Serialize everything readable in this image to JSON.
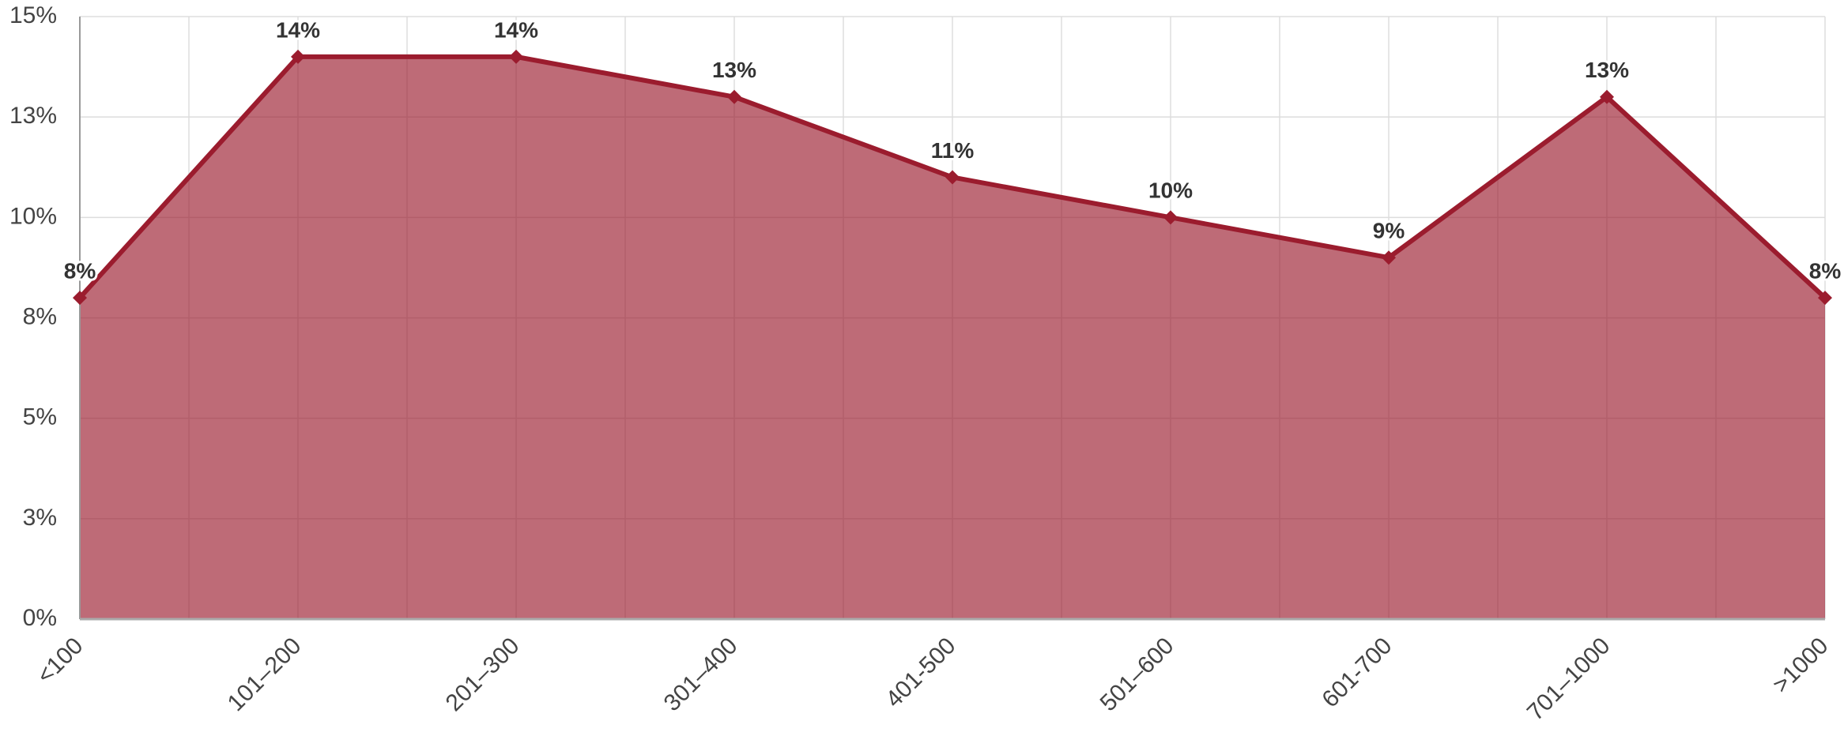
{
  "chart_data": {
    "type": "area",
    "categories": [
      "<100",
      "101–200",
      "201–300",
      "301–400",
      "401-500",
      "501–600",
      "601-700",
      "701–1000",
      ">1000"
    ],
    "values": [
      8,
      14,
      14,
      13,
      11,
      10,
      9,
      13,
      8
    ],
    "value_labels": [
      "8%",
      "14%",
      "14%",
      "13%",
      "11%",
      "10%",
      "9%",
      "13%",
      "8%"
    ],
    "color": "#9b1c2e",
    "ylim": [
      0,
      15
    ],
    "yticks": [
      {
        "value": 0,
        "label": "0%"
      },
      {
        "value": 2.5,
        "label": "3%"
      },
      {
        "value": 5,
        "label": "5%"
      },
      {
        "value": 7.5,
        "label": "8%"
      },
      {
        "value": 10,
        "label": "10%"
      },
      {
        "value": 12.5,
        "label": "13%"
      },
      {
        "value": 15,
        "label": "15%"
      }
    ],
    "grid": true
  }
}
